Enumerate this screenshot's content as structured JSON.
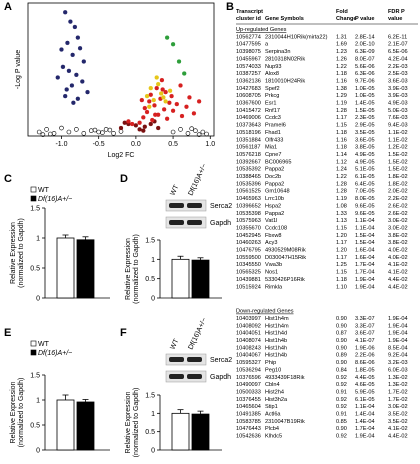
{
  "chart_data": [
    {
      "type": "scatter",
      "panel": "A",
      "xlabel": "Log2 FC",
      "ylabel": "-Log P value",
      "xlim": [
        -1.45,
        1.05
      ],
      "ylim": [
        0,
        10
      ],
      "xticks": [
        {
          "value": -1,
          "label": "-1.0"
        },
        -0.5,
        {
          "value": 0,
          "label": "0.0"
        },
        0.5,
        {
          "value": 1,
          "label": "1.0"
        }
      ],
      "series": [
        {
          "color": "#000000",
          "open": true,
          "x": [
            -1.3,
            -1.2,
            -1.1,
            -1.0,
            -0.9,
            -0.8,
            -0.7,
            -0.6,
            -0.5,
            -0.4,
            -0.3,
            -0.2,
            -1.25,
            -1.15,
            -0.35,
            0.5,
            0.6,
            0.7,
            0.8,
            0.9,
            0.95,
            0.75,
            0.85,
            -0.45,
            -0.55
          ],
          "values": [
            0.3,
            0.5,
            0.2,
            0.6,
            0.3,
            0.5,
            0.2,
            0.4,
            0.3,
            0.5,
            0.2,
            0.35,
            0.1,
            0.15,
            0.45,
            0.3,
            0.5,
            0.2,
            0.4,
            0.3,
            0.15,
            0.55,
            0.1,
            0.25,
            0.45
          ]
        },
        {
          "color": "#7a1010",
          "x": [
            -0.2,
            -0.1,
            0,
            0.05,
            0.12,
            0.2,
            0.3,
            -0.15,
            0.25,
            0.1
          ],
          "values": [
            0.6,
            0.9,
            0.8,
            0.5,
            0.7,
            0.9,
            0.6,
            1.0,
            1.1,
            0.4
          ]
        },
        {
          "color": "#d62020",
          "x": [
            0.05,
            0.1,
            0.12,
            0.15,
            0.18,
            0.2,
            0.22,
            0.25,
            0.28,
            0.3,
            0.33,
            0.35,
            0.38,
            0.4,
            0.42,
            0.45,
            0.48,
            0.5,
            0.55,
            0.6,
            0.62,
            0.68,
            0.72,
            0.78,
            0.85,
            -0.05,
            -0.1,
            0.08,
            0.26,
            0.36
          ],
          "values": [
            1.0,
            1.4,
            2.1,
            1.8,
            2.6,
            3.1,
            1.2,
            2.3,
            3.6,
            1.6,
            2.8,
            4.2,
            2.0,
            3.3,
            1.3,
            2.5,
            3.0,
            1.9,
            2.4,
            3.8,
            1.5,
            2.2,
            2.9,
            1.7,
            2.6,
            0.9,
            1.1,
            2.7,
            1.6,
            3.5
          ]
        },
        {
          "color": "#e6c619",
          "x": [
            0.15,
            0.2,
            0.24,
            0.3,
            0.34,
            0.4,
            0.46,
            0.28,
            0.18,
            0.37
          ],
          "values": [
            3.0,
            3.6,
            2.7,
            3.9,
            3.2,
            2.6,
            3.4,
            4.4,
            2.2,
            2.9
          ]
        },
        {
          "color": "#2e9e3a",
          "x": [
            0.42,
            0.5,
            0.58,
            0.65
          ],
          "values": [
            7.4,
            6.9,
            5.6,
            4.7
          ]
        },
        {
          "color": "#23276b",
          "x": [
            -0.95,
            -0.88,
            -0.82,
            -0.78,
            -0.92,
            -1.0,
            -0.85,
            -0.75,
            -0.7,
            -0.98,
            -0.9,
            -0.8,
            -1.05,
            -0.72,
            -0.86,
            -0.93,
            -0.65,
            -0.95,
            -0.78,
            -0.84
          ],
          "values": [
            9.3,
            8.6,
            8.2,
            7.4,
            7.0,
            6.5,
            6.1,
            6.6,
            5.6,
            5.2,
            4.9,
            4.6,
            4.4,
            4.1,
            3.8,
            3.5,
            3.3,
            3.0,
            2.8,
            2.5
          ]
        }
      ]
    },
    {
      "type": "bar",
      "panel": "C",
      "ylabel": [
        "Relative Expression",
        "(normalized to Gapdh)"
      ],
      "ylim": [
        0,
        1.5
      ],
      "yticks": [
        0,
        0.5,
        1,
        1.5
      ],
      "legend": true,
      "series": [
        {
          "name": "WT",
          "color": "#ffffff",
          "values": [
            1.0
          ],
          "errors": [
            0.05
          ]
        },
        {
          "name": "Df(16)A+/−",
          "color": "#000000",
          "values": [
            0.97
          ],
          "errors": [
            0.05
          ]
        }
      ]
    },
    {
      "type": "bar",
      "panel": "D",
      "ylabel": [
        "Relative Expression",
        "(normalized to Gapdh)"
      ],
      "ylim": [
        0,
        1.5
      ],
      "yticks": [
        0,
        0.5,
        1,
        1.5
      ],
      "blot": {
        "lanes": [
          "WT",
          "Df(16)A+/−"
        ],
        "bands": [
          "Serca2",
          "Gapdh"
        ]
      },
      "series": [
        {
          "color": "#ffffff",
          "values": [
            1.0
          ],
          "errors": [
            0.08
          ]
        },
        {
          "color": "#000000",
          "values": [
            0.98
          ],
          "errors": [
            0.06
          ]
        }
      ]
    },
    {
      "type": "bar",
      "panel": "E",
      "ylabel": [
        "Relative Expression",
        "(normalized to Gapdh)"
      ],
      "ylim": [
        0,
        1.5
      ],
      "yticks": [
        0,
        0.5,
        1,
        1.5
      ],
      "legend": true,
      "series": [
        {
          "name": "WT",
          "color": "#ffffff",
          "values": [
            1.0
          ],
          "errors": [
            0.1
          ]
        },
        {
          "name": "Df(16)A+/−",
          "color": "#000000",
          "values": [
            0.96
          ],
          "errors": [
            0.05
          ]
        }
      ]
    },
    {
      "type": "bar",
      "panel": "F",
      "ylabel": [
        "Relative Expression",
        "(normalized to Gapdh)"
      ],
      "ylim": [
        0,
        1.5
      ],
      "yticks": [
        0,
        0.5,
        1,
        1.5
      ],
      "blot": {
        "lanes": [
          "WT",
          "Df(16)A+/−"
        ],
        "bands": [
          "Serca2",
          "Gapdh"
        ]
      },
      "series": [
        {
          "color": "#ffffff",
          "values": [
            1.0
          ],
          "errors": [
            0.1
          ]
        },
        {
          "color": "#000000",
          "values": [
            0.98
          ],
          "errors": [
            0.08
          ]
        }
      ]
    }
  ],
  "table": {
    "panel": "B",
    "header": [
      [
        "Transcript",
        "cluster id"
      ],
      [
        "Gene Symbols"
      ],
      [
        "Fold",
        "Change"
      ],
      [
        "P value"
      ],
      [
        "FDR P",
        "value"
      ]
    ],
    "sections": [
      {
        "title": "Up-regulated Genes",
        "rows": [
          [
            "10562774",
            "2310044H10Rik(mirta22)",
            "1.31",
            "2.8E-14",
            "6.2E-11"
          ],
          [
            "10477595",
            "a",
            "1.69",
            "2.0E-10",
            "2.1E-07"
          ],
          [
            "10398075",
            "Serpina3n",
            "1.23",
            "6.3E-09",
            "6.5E-06"
          ],
          [
            "10455967",
            "2810318N02Rik",
            "1.26",
            "8.0E-07",
            "4.2E-04"
          ],
          [
            "10574033",
            "Nup93",
            "1.22",
            "5.6E-06",
            "2.2E-03"
          ],
          [
            "10387257",
            "Alox8",
            "1.18",
            "6.3E-06",
            "2.5E-03"
          ],
          [
            "10362136",
            "1810010H24Rik",
            "1.16",
            "9.7E-06",
            "3.6E-03"
          ],
          [
            "10427683",
            "Spef2",
            "1.38",
            "1.0E-05",
            "3.9E-03"
          ],
          [
            "10608705",
            "Prkcg",
            "1.29",
            "1.0E-05",
            "3.9E-03"
          ],
          [
            "10367600",
            "Esr1",
            "1.19",
            "1.4E-05",
            "4.9E-03"
          ],
          [
            "10415472",
            "Rnf17",
            "1.28",
            "1.5E-05",
            "5.0E-03"
          ],
          [
            "10469006",
            "Ccdc3",
            "1.17",
            "2.3E-05",
            "7.6E-03"
          ],
          [
            "10373643",
            "Pramel6",
            "1.15",
            "2.9E-05",
            "9.4E-03"
          ],
          [
            "10518196",
            "Fhad1",
            "1.18",
            "3.5E-05",
            "1.1E-02"
          ],
          [
            "10351884",
            "Olfr433",
            "1.16",
            "3.6E-05",
            "1.1E-02"
          ],
          [
            "10561187",
            "Mia1",
            "1.18",
            "3.8E-05",
            "1.2E-02"
          ],
          [
            "10576218",
            "Cpne7",
            "1.14",
            "4.9E-05",
            "1.5E-02"
          ],
          [
            "10392667",
            "BC006965",
            "1.12",
            "4.9E-05",
            "1.5E-02"
          ],
          [
            "10535392",
            "Pappa2",
            "1.24",
            "5.1E-05",
            "1.5E-02"
          ],
          [
            "10388465",
            "Doc2b",
            "1.22",
            "6.1E-05",
            "1.8E-02"
          ],
          [
            "10535396",
            "Pappa2",
            "1.28",
            "6.4E-05",
            "1.8E-02"
          ],
          [
            "10561525",
            "Gm10648",
            "1.28",
            "7.0E-05",
            "2.0E-02"
          ],
          [
            "10465963",
            "Lrrc10b",
            "1.19",
            "8.0E-05",
            "2.2E-02"
          ],
          [
            "10396652",
            "Hspa2",
            "1.08",
            "9.6E-05",
            "2.6E-02"
          ],
          [
            "10535398",
            "Pappa2",
            "1.33",
            "9.6E-05",
            "2.6E-02"
          ],
          [
            "10575963",
            "Vat1l",
            "1.13",
            "1.1E-04",
            "3.0E-02"
          ],
          [
            "10355670",
            "Ccdc108",
            "1.15",
            "1.1E-04",
            "3.0E-02"
          ],
          [
            "10452945",
            "Fbxw8",
            "1.20",
            "1.5E-04",
            "3.8E-02"
          ],
          [
            "10460263",
            "Acy3",
            "1.17",
            "1.5E-04",
            "3.8E-02"
          ],
          [
            "10476795",
            "4930529M08Rik",
            "1.20",
            "1.6E-04",
            "4.0E-02"
          ],
          [
            "10559500",
            "D030047H15Rik",
            "1.17",
            "1.6E-04",
            "4.0E-02"
          ],
          [
            "10345550",
            "Vwa3b",
            "1.25",
            "1.7E-04",
            "4.1E-02"
          ],
          [
            "10565325",
            "Nos1",
            "1.15",
            "1.7E-04",
            "4.1E-02"
          ],
          [
            "10439881",
            "5330426P16Rik",
            "1.18",
            "1.9E-04",
            "4.4E-02"
          ],
          [
            "10515924",
            "Rimkla",
            "1.10",
            "1.9E-04",
            "4.4E-02"
          ]
        ]
      },
      {
        "title": "Down-regulated Genes",
        "rows": [
          [
            "10403997",
            "Hist1h4m",
            "0.90",
            "3.3E-07",
            "1.9E-04"
          ],
          [
            "10408092",
            "Hist1h4m",
            "0.90",
            "3.3E-07",
            "1.9E-04"
          ],
          [
            "10404051",
            "Hist1h4d",
            "0.87",
            "3.6E-07",
            "1.9E-04"
          ],
          [
            "10408074",
            "Hist1h4b",
            "0.90",
            "4.1E-07",
            "1.9E-04"
          ],
          [
            "10408243",
            "Hist1h4h",
            "0.90",
            "1.9E-06",
            "8.5E-04"
          ],
          [
            "10404067",
            "Hist1h4b",
            "0.89",
            "2.2E-06",
            "9.2E-04"
          ],
          [
            "10595327",
            "Phip",
            "0.90",
            "8.6E-06",
            "3.2E-03"
          ],
          [
            "10536294",
            "Peg10",
            "0.84",
            "1.8E-05",
            "6.0E-03"
          ],
          [
            "10376596",
            "4933439F18Rik",
            "0.92",
            "4.4E-05",
            "1.3E-02"
          ],
          [
            "10490097",
            "Cbln4",
            "0.92",
            "4.6E-05",
            "1.3E-02"
          ],
          [
            "10500333",
            "Hist2h4",
            "0.91",
            "5.9E-05",
            "1.7E-02"
          ],
          [
            "10376455",
            "Hist3h2a",
            "0.92",
            "6.1E-05",
            "1.7E-02"
          ],
          [
            "10465604",
            "Stip1",
            "0.92",
            "1.1E-04",
            "3.0E-02"
          ],
          [
            "10491385",
            "Actl6a",
            "0.91",
            "1.4E-04",
            "3.5E-02"
          ],
          [
            "10583785",
            "2310047B19Rik",
            "0.85",
            "1.4E-04",
            "3.5E-02"
          ],
          [
            "10476443",
            "Plcb4",
            "0.90",
            "1.7E-04",
            "4.1E-02"
          ],
          [
            "10542636",
            "Klhdc5",
            "0.92",
            "1.9E-04",
            "4.4E-02"
          ]
        ]
      }
    ]
  }
}
